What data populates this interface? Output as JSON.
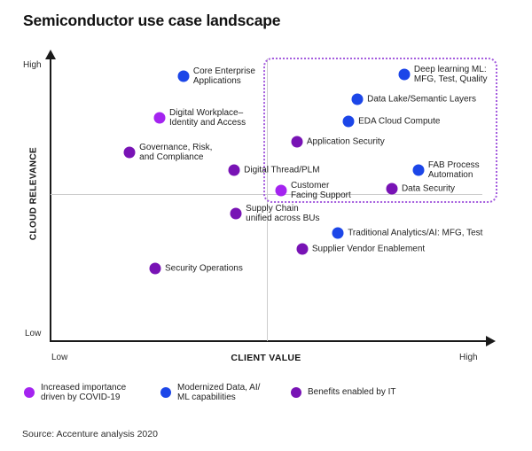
{
  "title": "Semiconductor use case landscape",
  "source": "Source: Accenture analysis 2020",
  "colors": {
    "covid": "#a424f0",
    "modernized": "#1c46e8",
    "it": "#7813b5",
    "axis": "#1a1a1a",
    "grid": "#cccccc",
    "highlight_border": "#a55ede"
  },
  "axes": {
    "y_label": "CLOUD RELEVANCE",
    "x_label": "CLIENT VALUE",
    "y_high": "High",
    "y_low": "Low",
    "x_low": "Low",
    "x_high": "High"
  },
  "legend": [
    {
      "series": "covid",
      "label": "Increased importance\ndriven by COVID-19"
    },
    {
      "series": "modernized",
      "label": "Modernized Data, AI/\nML capabilities"
    },
    {
      "series": "it",
      "label": "Benefits enabled by IT"
    }
  ],
  "chart_data": {
    "type": "scatter",
    "title": "Semiconductor use case landscape",
    "xlabel": "CLIENT VALUE",
    "ylabel": "CLOUD RELEVANCE",
    "x_range": [
      "Low",
      "High"
    ],
    "y_range": [
      "Low",
      "High"
    ],
    "grid": "quadrant-divider-lines",
    "legend_position": "bottom",
    "series_names": {
      "covid": "Increased importance driven by COVID-19",
      "modernized": "Modernized Data, AI/ML capabilities",
      "it": "Benefits enabled by IT"
    },
    "highlight_box": {
      "x_min": 0.482,
      "x_max": 1.012,
      "y_min": 0.483,
      "y_max": 0.991
    },
    "points": [
      {
        "label": "Core Enterprise\nApplications",
        "series": "modernized",
        "x": 0.301,
        "y": 0.926
      },
      {
        "label": "Deep learning ML:\nMFG, Test, Quality",
        "series": "modernized",
        "x": 0.801,
        "y": 0.932
      },
      {
        "label": "Data Lake/Semantic Layers",
        "series": "modernized",
        "x": 0.695,
        "y": 0.845
      },
      {
        "label": "EDA Cloud Compute",
        "series": "modernized",
        "x": 0.675,
        "y": 0.768
      },
      {
        "label": "Digital Workplace–\nIdentity and Access",
        "series": "covid",
        "x": 0.247,
        "y": 0.78
      },
      {
        "label": "Governance, Risk,\nand Compliance",
        "series": "it",
        "x": 0.179,
        "y": 0.659
      },
      {
        "label": "Application Security",
        "series": "it",
        "x": 0.558,
        "y": 0.697
      },
      {
        "label": "Digital Thread/PLM",
        "series": "it",
        "x": 0.416,
        "y": 0.598
      },
      {
        "label": "FAB Process\nAutomation",
        "series": "modernized",
        "x": 0.833,
        "y": 0.598
      },
      {
        "label": "Customer\nFacing Support",
        "series": "covid",
        "x": 0.522,
        "y": 0.526
      },
      {
        "label": "Data Security",
        "series": "it",
        "x": 0.773,
        "y": 0.533
      },
      {
        "label": "Supply Chain\nunified across BUs",
        "series": "it",
        "x": 0.42,
        "y": 0.446
      },
      {
        "label": "Traditional Analytics/AI: MFG, Test",
        "series": "modernized",
        "x": 0.651,
        "y": 0.378
      },
      {
        "label": "Supplier Vendor Enablement",
        "series": "it",
        "x": 0.57,
        "y": 0.322
      },
      {
        "label": "Security Operations",
        "series": "it",
        "x": 0.237,
        "y": 0.254
      }
    ]
  }
}
